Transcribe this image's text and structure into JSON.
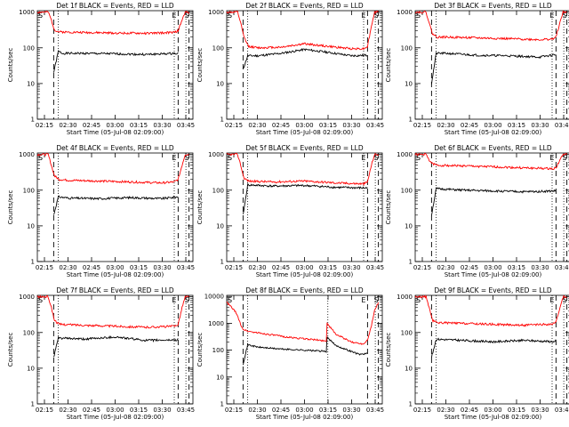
{
  "figure": {
    "background": "#ffffff"
  },
  "colors": {
    "events": "#000000",
    "lld": "#ff0000",
    "axis": "#000000"
  },
  "chart_data": [
    {
      "type": "line",
      "title": "Det 1f BLACK = Events, RED = LLD",
      "xlabel": "Start Time (05-Jul-08 02:09:00)",
      "ylabel": "Counts/sec",
      "xticks": [
        "02:15",
        "02:30",
        "02:45",
        "03:00",
        "03:15",
        "03:30",
        "03:45"
      ],
      "yticks": [
        "1",
        "10",
        "100",
        "1000"
      ],
      "ylog": true,
      "ylim": [
        1,
        1100
      ],
      "xlim": [
        0.0,
        1.0
      ],
      "markers": {
        "S1": 0.0,
        "E": 0.905,
        "S2": 0.975
      },
      "series": [
        {
          "name": "Events",
          "segments": [
            {
              "x": [
                0.105,
                0.135,
                0.16,
                0.3,
                0.5,
                0.7,
                0.89,
                0.905
              ],
              "y": [
                20,
                80,
                70,
                70,
                68,
                65,
                70,
                75
              ]
            }
          ]
        },
        {
          "name": "LLD",
          "segments": [
            {
              "x": [
                0.0,
                0.07,
                0.09,
                0.11,
                0.14,
                0.3,
                0.5,
                0.7,
                0.88,
                0.905,
                0.93,
                0.95,
                0.975
              ],
              "y": [
                1000,
                1000,
                600,
                320,
                280,
                270,
                260,
                255,
                270,
                300,
                600,
                1000,
                1000
              ]
            }
          ]
        }
      ],
      "vlines_dashed": [
        0.105,
        0.905,
        0.975
      ],
      "vlines_dotted": [
        0.135,
        0.88,
        0.955
      ]
    },
    {
      "type": "line",
      "title": "Det 2f BLACK = Events, RED = LLD",
      "xlabel": "Start Time (05-Jul-08 02:09:00)",
      "ylabel": "Counts/sec",
      "xticks": [
        "02:15",
        "02:30",
        "02:45",
        "03:00",
        "03:15",
        "03:30",
        "03:45"
      ],
      "yticks": [
        "1",
        "10",
        "100",
        "1000"
      ],
      "ylog": true,
      "ylim": [
        1,
        1100
      ],
      "xlim": [
        0.0,
        1.0
      ],
      "markers": {
        "S1": 0.0,
        "E": 0.905,
        "S2": 0.975
      },
      "series": [
        {
          "name": "Events",
          "segments": [
            {
              "x": [
                0.105,
                0.135,
                0.2,
                0.35,
                0.5,
                0.65,
                0.8,
                0.905
              ],
              "y": [
                25,
                60,
                60,
                70,
                90,
                75,
                60,
                62
              ]
            }
          ]
        },
        {
          "name": "LLD",
          "segments": [
            {
              "x": [
                0.0,
                0.07,
                0.09,
                0.11,
                0.14,
                0.2,
                0.35,
                0.5,
                0.65,
                0.8,
                0.88,
                0.905,
                0.93,
                0.95,
                0.975
              ],
              "y": [
                1000,
                1000,
                500,
                200,
                110,
                100,
                105,
                130,
                110,
                95,
                95,
                110,
                400,
                1000,
                1000
              ]
            }
          ]
        }
      ],
      "vlines_dashed": [
        0.105,
        0.905,
        0.975
      ],
      "vlines_dotted": [
        0.135,
        0.88,
        0.955
      ]
    },
    {
      "type": "line",
      "title": "Det 3f BLACK = Events, RED = LLD",
      "xlabel": "Start Time (05-Jul-08 02:09:00)",
      "ylabel": "Counts/sec",
      "xticks": [
        "02:15",
        "02:30",
        "02:45",
        "03:00",
        "03:15",
        "03:30",
        "03:45"
      ],
      "yticks": [
        "1",
        "10",
        "100",
        "1000"
      ],
      "ylog": true,
      "ylim": [
        1,
        1100
      ],
      "xlim": [
        0.0,
        1.0
      ],
      "markers": {
        "S1": 0.0,
        "E": 0.905,
        "S2": 0.975
      },
      "series": [
        {
          "name": "Events",
          "segments": [
            {
              "x": [
                0.105,
                0.135,
                0.2,
                0.4,
                0.6,
                0.8,
                0.905
              ],
              "y": [
                10,
                70,
                70,
                62,
                60,
                55,
                65
              ]
            }
          ]
        },
        {
          "name": "LLD",
          "segments": [
            {
              "x": [
                0.0,
                0.07,
                0.09,
                0.11,
                0.14,
                0.2,
                0.4,
                0.6,
                0.8,
                0.88,
                0.905,
                0.93,
                0.95,
                0.975
              ],
              "y": [
                1000,
                1000,
                500,
                250,
                200,
                200,
                190,
                180,
                170,
                175,
                200,
                500,
                1000,
                1000
              ]
            }
          ]
        }
      ],
      "vlines_dashed": [
        0.105,
        0.905,
        0.975
      ],
      "vlines_dotted": [
        0.135,
        0.88,
        0.955
      ]
    },
    {
      "type": "line",
      "title": "Det 4f BLACK = Events, RED = LLD",
      "xlabel": "Start Time (05-Jul-08 02:09:00)",
      "ylabel": "Counts/sec",
      "xticks": [
        "02:15",
        "02:30",
        "02:45",
        "03:00",
        "03:15",
        "03:30",
        "03:45"
      ],
      "yticks": [
        "1",
        "10",
        "100",
        "1000"
      ],
      "ylog": true,
      "ylim": [
        1,
        1100
      ],
      "xlim": [
        0.0,
        1.0
      ],
      "markers": {
        "S1": 0.0,
        "E": 0.905,
        "S2": 0.975
      },
      "series": [
        {
          "name": "Events",
          "segments": [
            {
              "x": [
                0.105,
                0.135,
                0.2,
                0.4,
                0.6,
                0.8,
                0.905
              ],
              "y": [
                20,
                65,
                60,
                58,
                62,
                58,
                65
              ]
            }
          ]
        },
        {
          "name": "LLD",
          "segments": [
            {
              "x": [
                0.0,
                0.07,
                0.09,
                0.11,
                0.14,
                0.2,
                0.4,
                0.6,
                0.8,
                0.88,
                0.905,
                0.93,
                0.95,
                0.975
              ],
              "y": [
                1000,
                1000,
                500,
                250,
                200,
                190,
                180,
                170,
                160,
                170,
                200,
                500,
                1000,
                1000
              ]
            }
          ]
        }
      ],
      "vlines_dashed": [
        0.105,
        0.905,
        0.975
      ],
      "vlines_dotted": [
        0.135,
        0.88,
        0.955
      ]
    },
    {
      "type": "line",
      "title": "Det 5f BLACK = Events, RED = LLD",
      "xlabel": "Start Time (05-Jul-08 02:09:00)",
      "ylabel": "Counts/sec",
      "xticks": [
        "02:15",
        "02:30",
        "02:45",
        "03:00",
        "03:15",
        "03:30",
        "03:45"
      ],
      "yticks": [
        "1",
        "10",
        "100",
        "1000"
      ],
      "ylog": true,
      "ylim": [
        1,
        1100
      ],
      "xlim": [
        0.0,
        1.0
      ],
      "markers": {
        "S1": 0.0,
        "E": 0.905,
        "S2": 0.975
      },
      "series": [
        {
          "name": "Events",
          "segments": [
            {
              "x": [
                0.105,
                0.135,
                0.3,
                0.5,
                0.7,
                0.9,
                0.905
              ],
              "y": [
                20,
                140,
                130,
                135,
                120,
                115,
                120
              ]
            }
          ]
        },
        {
          "name": "LLD",
          "segments": [
            {
              "x": [
                0.0,
                0.07,
                0.09,
                0.11,
                0.14,
                0.3,
                0.5,
                0.7,
                0.88,
                0.905,
                0.93,
                0.95,
                0.975
              ],
              "y": [
                1000,
                1000,
                500,
                220,
                180,
                170,
                180,
                160,
                150,
                170,
                500,
                1000,
                1000
              ]
            }
          ]
        }
      ],
      "vlines_dashed": [
        0.105,
        0.905,
        0.975
      ],
      "vlines_dotted": [
        0.135,
        0.88,
        0.955
      ]
    },
    {
      "type": "line",
      "title": "Det 6f BLACK = Events, RED = LLD",
      "xlabel": "Start Time (05-Jul-08 02:09:00)",
      "ylabel": "Counts/sec",
      "xticks": [
        "02:15",
        "02:30",
        "02:45",
        "03:00",
        "03:15",
        "03:30",
        "03:45"
      ],
      "yticks": [
        "1",
        "10",
        "100",
        "1000"
      ],
      "ylog": true,
      "ylim": [
        1,
        1100
      ],
      "xlim": [
        0.0,
        1.0
      ],
      "markers": {
        "S1": 0.0,
        "E": 0.905,
        "S2": 0.975
      },
      "series": [
        {
          "name": "Events",
          "segments": [
            {
              "x": [
                0.105,
                0.135,
                0.3,
                0.5,
                0.7,
                0.9,
                0.905
              ],
              "y": [
                20,
                110,
                100,
                95,
                90,
                95,
                100
              ]
            }
          ]
        },
        {
          "name": "LLD",
          "segments": [
            {
              "x": [
                0.0,
                0.07,
                0.09,
                0.11,
                0.14,
                0.3,
                0.5,
                0.7,
                0.88,
                0.905,
                0.93,
                0.95,
                0.975
              ],
              "y": [
                1000,
                1000,
                700,
                550,
                500,
                480,
                450,
                420,
                400,
                420,
                700,
                1000,
                1000
              ]
            }
          ]
        }
      ],
      "vlines_dashed": [
        0.105,
        0.905,
        0.975
      ],
      "vlines_dotted": [
        0.135,
        0.88,
        0.955
      ]
    },
    {
      "type": "line",
      "title": "Det 7f BLACK = Events, RED = LLD",
      "xlabel": "Start Time (05-Jul-08 02:09:00)",
      "ylabel": "Counts/sec",
      "xticks": [
        "02:15",
        "02:30",
        "02:45",
        "03:00",
        "03:15",
        "03:30",
        "03:45"
      ],
      "yticks": [
        "1",
        "10",
        "100",
        "1000"
      ],
      "ylog": true,
      "ylim": [
        1,
        1100
      ],
      "xlim": [
        0.0,
        1.0
      ],
      "markers": {
        "S1": 0.0,
        "E": 0.905,
        "S2": 0.975
      },
      "series": [
        {
          "name": "Events",
          "segments": [
            {
              "x": [
                0.105,
                0.135,
                0.3,
                0.5,
                0.7,
                0.9,
                0.905
              ],
              "y": [
                20,
                70,
                65,
                75,
                60,
                62,
                68
              ]
            }
          ]
        },
        {
          "name": "LLD",
          "segments": [
            {
              "x": [
                0.0,
                0.07,
                0.09,
                0.11,
                0.14,
                0.3,
                0.5,
                0.7,
                0.88,
                0.905,
                0.93,
                0.95,
                0.975
              ],
              "y": [
                1000,
                1000,
                500,
                220,
                170,
                160,
                150,
                140,
                150,
                170,
                500,
                1000,
                1000
              ]
            }
          ]
        }
      ],
      "vlines_dashed": [
        0.105,
        0.905,
        0.975
      ],
      "vlines_dotted": [
        0.135,
        0.88,
        0.955
      ]
    },
    {
      "type": "line",
      "title": "Det 8f BLACK = Events, RED = LLD",
      "xlabel": "Start Time (05-Jul-08 02:09:00)",
      "ylabel": "Counts/sec",
      "xticks": [
        "02:15",
        "02:30",
        "02:45",
        "03:00",
        "03:15",
        "03:30",
        "03:45"
      ],
      "yticks": [
        "1",
        "10",
        "100",
        "1000",
        "10000"
      ],
      "ylog": true,
      "ylim": [
        1,
        11000
      ],
      "xlim": [
        0.0,
        1.0
      ],
      "markers": {
        "S1": 0.0,
        "E": 0.905,
        "S2": 0.975
      },
      "series": [
        {
          "name": "Events",
          "segments": [
            {
              "x": [
                0.105,
                0.135,
                0.2,
                0.35,
                0.5,
                0.64,
                0.645,
                0.7,
                0.85,
                0.905
              ],
              "y": [
                30,
                160,
                130,
                110,
                100,
                90,
                300,
                150,
                70,
                75
              ]
            }
          ]
        },
        {
          "name": "LLD",
          "segments": [
            {
              "x": [
                0.0,
                0.03,
                0.06,
                0.09,
                0.105,
                0.14,
                0.25,
                0.4,
                0.55,
                0.64,
                0.645,
                0.7,
                0.8,
                0.88,
                0.905,
                0.93,
                0.95,
                0.975
              ],
              "y": [
                6000,
                4000,
                2500,
                900,
                600,
                500,
                400,
                300,
                250,
                220,
                1000,
                400,
                200,
                170,
                250,
                800,
                3000,
                6000
              ]
            }
          ]
        }
      ],
      "vlines_dashed": [
        0.105,
        0.905,
        0.975
      ],
      "vlines_dotted": [
        0.135,
        0.65,
        0.955
      ]
    },
    {
      "type": "line",
      "title": "Det 9f BLACK = Events, RED = LLD",
      "xlabel": "Start Time (05-Jul-08 02:09:00)",
      "ylabel": "Counts/sec",
      "xticks": [
        "02:15",
        "02:30",
        "02:45",
        "03:00",
        "03:15",
        "03:30",
        "03:45"
      ],
      "yticks": [
        "1",
        "10",
        "100",
        "1000"
      ],
      "ylog": true,
      "ylim": [
        1,
        1100
      ],
      "xlim": [
        0.0,
        1.0
      ],
      "markers": {
        "S1": 0.0,
        "E": 0.905,
        "S2": 0.975
      },
      "series": [
        {
          "name": "Events",
          "segments": [
            {
              "x": [
                0.105,
                0.135,
                0.3,
                0.5,
                0.7,
                0.9,
                0.905
              ],
              "y": [
                20,
                65,
                60,
                55,
                60,
                55,
                62
              ]
            }
          ]
        },
        {
          "name": "LLD",
          "segments": [
            {
              "x": [
                0.0,
                0.07,
                0.09,
                0.11,
                0.14,
                0.3,
                0.5,
                0.7,
                0.88,
                0.905,
                0.93,
                0.95,
                0.975
              ],
              "y": [
                1000,
                1000,
                500,
                220,
                190,
                180,
                170,
                160,
                170,
                190,
                500,
                1000,
                1000
              ]
            }
          ]
        }
      ],
      "vlines_dashed": [
        0.105,
        0.905,
        0.975
      ],
      "vlines_dotted": [
        0.135,
        0.88,
        0.955
      ]
    }
  ]
}
